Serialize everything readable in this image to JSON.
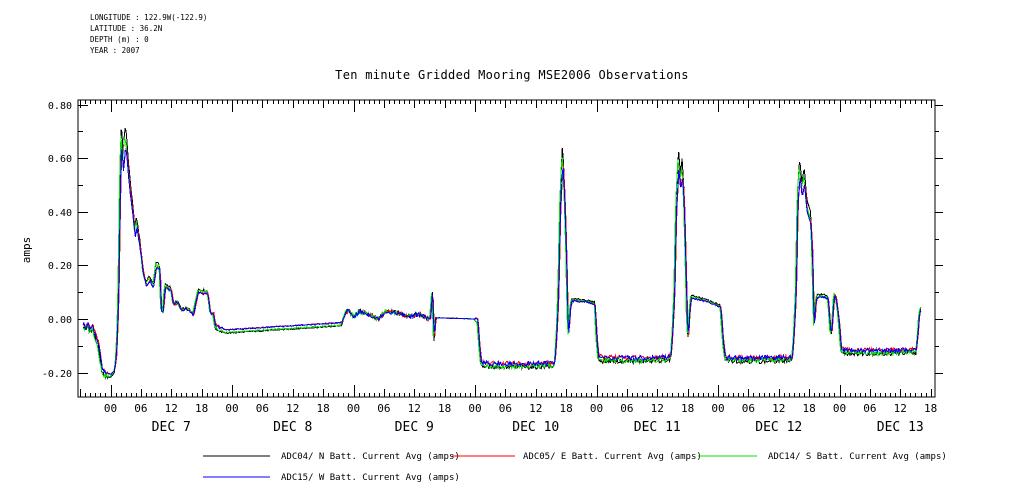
{
  "title": "Ten minute Gridded Mooring MSE2006 Observations",
  "meta": {
    "lines": [
      "LONGITUDE : 122.9W(-122.9)",
      "LATITUDE : 36.2N",
      "DEPTH (m) : 0",
      "YEAR : 2007"
    ]
  },
  "chart_data": {
    "type": "line",
    "title": "Ten minute Gridded Mooring MSE2006 Observations",
    "ylabel": "amps",
    "ylim": [
      -0.291,
      0.817
    ],
    "yticks_major": [
      -0.2,
      0.0,
      0.2,
      0.4,
      0.6,
      0.8
    ],
    "ytick_labels": [
      "-0.20",
      "0.00",
      "0.20",
      "0.40",
      "0.60",
      "0.80"
    ],
    "yticks_minor": [
      -0.1,
      0.1,
      0.3,
      0.5,
      0.7
    ],
    "xlim_days": [
      -0.2675,
      6.786
    ],
    "x_epoch": "days from DEC 7 00:00, year 2007",
    "minor_tick_hours": 1,
    "major_tick_hours": 6,
    "hour_label_cycle": [
      "00",
      "06",
      "12",
      "18"
    ],
    "hour_label_range_days": [
      0,
      6.75
    ],
    "day_labels": [
      {
        "t": 0.5,
        "text": "DEC  7"
      },
      {
        "t": 1.5,
        "text": "DEC  8"
      },
      {
        "t": 2.5,
        "text": "DEC  9"
      },
      {
        "t": 3.5,
        "text": "DEC 10"
      },
      {
        "t": 4.5,
        "text": "DEC 11"
      },
      {
        "t": 5.5,
        "text": "DEC 12"
      },
      {
        "t": 6.5,
        "text": "DEC 13"
      }
    ],
    "grid": false,
    "legend_position": "bottom",
    "sample_minutes": 10,
    "series": [
      {
        "id": "adc04",
        "label": "ADC04/ N Batt. Current Avg (amps)",
        "color": "#000000",
        "peak_gain": 1.0,
        "flat_offset": -0.008,
        "time_shift": 0.0
      },
      {
        "id": "adc05",
        "label": "ADC05/ E Batt. Current Avg (amps)",
        "color": "#ff0000",
        "peak_gain": 0.9,
        "flat_offset": 0.005,
        "time_shift": 0.006
      },
      {
        "id": "adc14",
        "label": "ADC14/ S Batt. Current Avg (amps)",
        "color": "#00e000",
        "peak_gain": 0.95,
        "flat_offset": -0.005,
        "time_shift": -0.004
      },
      {
        "id": "adc15",
        "label": "ADC15/ W Batt. Current Avg (amps)",
        "color": "#0000ff",
        "peak_gain": 0.89,
        "flat_offset": 0.004,
        "time_shift": 0.003
      }
    ],
    "base_points": [
      [
        -0.226,
        -0.02
      ],
      [
        -0.21,
        -0.035
      ],
      [
        -0.19,
        -0.02
      ],
      [
        -0.17,
        -0.04
      ],
      [
        -0.15,
        -0.03
      ],
      [
        -0.128,
        -0.06
      ],
      [
        -0.1,
        -0.1
      ],
      [
        -0.07,
        -0.19
      ],
      [
        -0.05,
        -0.205
      ],
      [
        0.0,
        -0.21
      ],
      [
        0.03,
        -0.195
      ],
      [
        0.045,
        -0.15
      ],
      [
        0.055,
        -0.05
      ],
      [
        0.065,
        0.1
      ],
      [
        0.075,
        0.45
      ],
      [
        0.088,
        0.74
      ],
      [
        0.098,
        0.66
      ],
      [
        0.105,
        0.62
      ],
      [
        0.118,
        0.71
      ],
      [
        0.13,
        0.7
      ],
      [
        0.145,
        0.6
      ],
      [
        0.17,
        0.48
      ],
      [
        0.185,
        0.42
      ],
      [
        0.2,
        0.345
      ],
      [
        0.215,
        0.38
      ],
      [
        0.24,
        0.3
      ],
      [
        0.27,
        0.185
      ],
      [
        0.29,
        0.14
      ],
      [
        0.325,
        0.16
      ],
      [
        0.35,
        0.13
      ],
      [
        0.375,
        0.215
      ],
      [
        0.405,
        0.205
      ],
      [
        0.415,
        0.04
      ],
      [
        0.43,
        0.03
      ],
      [
        0.45,
        0.133
      ],
      [
        0.5,
        0.115
      ],
      [
        0.515,
        0.06
      ],
      [
        0.555,
        0.066
      ],
      [
        0.58,
        0.037
      ],
      [
        0.64,
        0.04
      ],
      [
        0.68,
        0.018
      ],
      [
        0.72,
        0.111
      ],
      [
        0.8,
        0.104
      ],
      [
        0.82,
        0.022
      ],
      [
        0.845,
        0.022
      ],
      [
        0.86,
        -0.026
      ],
      [
        0.9,
        -0.037
      ],
      [
        0.95,
        -0.045
      ],
      [
        1.4,
        -0.032
      ],
      [
        1.9,
        -0.018
      ],
      [
        1.93,
        0.02
      ],
      [
        1.95,
        0.035
      ],
      [
        2.0,
        0.01
      ],
      [
        2.05,
        0.03
      ],
      [
        2.12,
        0.02
      ],
      [
        2.2,
        0.0
      ],
      [
        2.26,
        0.03
      ],
      [
        2.35,
        0.025
      ],
      [
        2.45,
        0.01
      ],
      [
        2.55,
        0.02
      ],
      [
        2.61,
        0.0
      ],
      [
        2.63,
        0.0
      ],
      [
        2.648,
        0.115
      ],
      [
        2.662,
        -0.08
      ],
      [
        2.675,
        0.005
      ],
      [
        3.0,
        0.0
      ],
      [
        3.02,
        -0.005
      ],
      [
        3.035,
        -0.1
      ],
      [
        3.05,
        -0.165
      ],
      [
        3.1,
        -0.17
      ],
      [
        3.4,
        -0.172
      ],
      [
        3.655,
        -0.168
      ],
      [
        3.672,
        -0.05
      ],
      [
        3.685,
        0.1
      ],
      [
        3.7,
        0.45
      ],
      [
        3.72,
        0.655
      ],
      [
        3.735,
        0.52
      ],
      [
        3.75,
        0.28
      ],
      [
        3.762,
        0.0
      ],
      [
        3.77,
        -0.062
      ],
      [
        3.782,
        0.04
      ],
      [
        3.795,
        0.075
      ],
      [
        3.9,
        0.072
      ],
      [
        3.985,
        0.062
      ],
      [
        4.0,
        -0.07
      ],
      [
        4.015,
        -0.145
      ],
      [
        4.05,
        -0.148
      ],
      [
        4.35,
        -0.15
      ],
      [
        4.61,
        -0.145
      ],
      [
        4.625,
        -0.05
      ],
      [
        4.64,
        0.1
      ],
      [
        4.655,
        0.45
      ],
      [
        4.675,
        0.635
      ],
      [
        4.69,
        0.54
      ],
      [
        4.705,
        0.6
      ],
      [
        4.72,
        0.48
      ],
      [
        4.735,
        0.2
      ],
      [
        4.745,
        -0.02
      ],
      [
        4.755,
        -0.067
      ],
      [
        4.765,
        0.03
      ],
      [
        4.778,
        0.088
      ],
      [
        4.85,
        0.08
      ],
      [
        4.95,
        0.065
      ],
      [
        5.02,
        0.05
      ],
      [
        5.04,
        -0.08
      ],
      [
        5.058,
        -0.145
      ],
      [
        5.1,
        -0.148
      ],
      [
        5.35,
        -0.15
      ],
      [
        5.61,
        -0.146
      ],
      [
        5.625,
        -0.05
      ],
      [
        5.64,
        0.1
      ],
      [
        5.655,
        0.48
      ],
      [
        5.672,
        0.6
      ],
      [
        5.69,
        0.51
      ],
      [
        5.71,
        0.565
      ],
      [
        5.73,
        0.45
      ],
      [
        5.748,
        0.42
      ],
      [
        5.762,
        0.4
      ],
      [
        5.775,
        0.28
      ],
      [
        5.785,
        0.05
      ],
      [
        5.793,
        -0.03
      ],
      [
        5.8,
        0.055
      ],
      [
        5.812,
        0.09
      ],
      [
        5.86,
        0.092
      ],
      [
        5.905,
        0.085
      ],
      [
        5.922,
        -0.035
      ],
      [
        5.935,
        -0.05
      ],
      [
        5.955,
        0.1
      ],
      [
        5.97,
        0.088
      ],
      [
        5.99,
        0.01
      ],
      [
        6.002,
        -0.05
      ],
      [
        6.012,
        -0.115
      ],
      [
        6.05,
        -0.12
      ],
      [
        6.35,
        -0.122
      ],
      [
        6.63,
        -0.118
      ],
      [
        6.645,
        -0.05
      ],
      [
        6.655,
        0.02
      ],
      [
        6.672,
        0.048
      ]
    ],
    "noise_segments": [
      [
        -0.226,
        -0.02,
        0.008
      ],
      [
        0.1,
        0.92,
        0.005
      ],
      [
        0.95,
        1.9,
        0.002
      ],
      [
        1.93,
        2.62,
        0.008
      ],
      [
        3.06,
        3.66,
        0.009
      ],
      [
        3.8,
        3.99,
        0.003
      ],
      [
        4.03,
        4.61,
        0.009
      ],
      [
        4.79,
        5.02,
        0.003
      ],
      [
        5.07,
        5.61,
        0.009
      ],
      [
        5.82,
        5.99,
        0.003
      ],
      [
        6.02,
        6.63,
        0.008
      ]
    ]
  }
}
